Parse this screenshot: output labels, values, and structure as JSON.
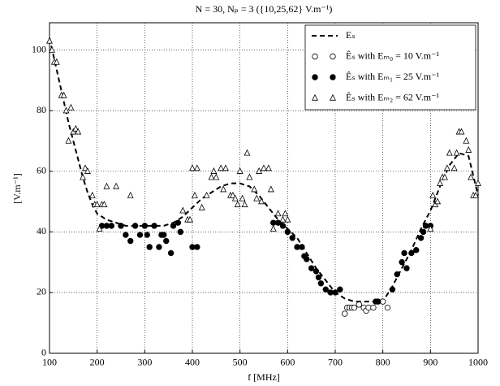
{
  "chart_data": {
    "type": "line",
    "title": "N = 30, Nₚ = 3 ({10,25,62} V.m⁻¹)",
    "x_label": "f [MHz]",
    "y_label": "[V.m⁻¹]",
    "xlim": [
      100,
      1000
    ],
    "xticks": [
      100,
      200,
      300,
      400,
      500,
      600,
      700,
      800,
      900,
      1000
    ],
    "ylim": [
      0,
      109
    ],
    "yticks": [
      0,
      20,
      40,
      60,
      80,
      100
    ],
    "grid": true,
    "legend": "upper right",
    "series": [
      {
        "name": "Eₛ",
        "color": "#000000",
        "style": "dashed",
        "x": [
          100,
          110,
          120,
          130,
          140,
          150,
          160,
          170,
          180,
          190,
          200,
          220,
          240,
          260,
          280,
          300,
          320,
          340,
          360,
          380,
          400,
          420,
          440,
          460,
          480,
          500,
          520,
          540,
          560,
          580,
          600,
          620,
          640,
          660,
          680,
          700,
          720,
          740,
          760,
          780,
          800,
          820,
          840,
          860,
          880,
          900,
          920,
          940,
          960,
          980,
          1000
        ],
        "values": [
          104,
          97,
          90,
          83,
          76,
          70,
          64,
          58,
          53,
          49,
          46,
          44,
          43,
          42,
          42,
          42,
          42,
          42,
          43,
          45,
          48,
          51,
          53,
          55,
          56,
          56,
          55,
          52,
          48,
          44,
          41,
          38,
          33,
          28,
          24,
          20,
          18,
          17,
          17,
          17,
          17,
          22,
          28,
          34,
          41,
          47,
          55,
          62,
          66,
          65,
          52
        ]
      },
      {
        "name": "Êₛ with Eₘ₀ = 10 V.m⁻¹",
        "color": "#000000",
        "marker": "open-circle",
        "x": [
          720,
          725,
          730,
          735,
          740,
          750,
          760,
          765,
          770,
          780,
          800,
          810
        ],
        "values": [
          13,
          15,
          15,
          15,
          15,
          16,
          15,
          14,
          15,
          15,
          17,
          15
        ]
      },
      {
        "name": "Êₛ with Eₘ₁ = 25 V.m⁻¹",
        "color": "#000000",
        "marker": "filled-circle",
        "x": [
          210,
          220,
          230,
          250,
          260,
          270,
          280,
          290,
          300,
          305,
          310,
          320,
          330,
          335,
          340,
          345,
          355,
          360,
          370,
          375,
          400,
          410,
          570,
          580,
          590,
          600,
          610,
          620,
          630,
          635,
          640,
          650,
          660,
          665,
          670,
          680,
          690,
          700,
          710,
          785,
          790,
          820,
          830,
          840,
          845,
          850,
          860,
          870,
          880,
          885,
          890,
          900
        ],
        "values": [
          42,
          42,
          42,
          42,
          39,
          37,
          42,
          39,
          42,
          39,
          35,
          42,
          35,
          39,
          39,
          37,
          33,
          42,
          43,
          40,
          35,
          35,
          43,
          43,
          42,
          40,
          38,
          35,
          35,
          32,
          31,
          28,
          27,
          25,
          23,
          21,
          20,
          20,
          21,
          17,
          17,
          21,
          26,
          30,
          33,
          28,
          33,
          34,
          38,
          40,
          42,
          42
        ]
      },
      {
        "name": "Êₛ with Eₘ₂ = 62 V.m⁻¹",
        "color": "#000000",
        "marker": "open-triangle",
        "x": [
          100,
          105,
          110,
          115,
          125,
          130,
          135,
          140,
          145,
          150,
          155,
          160,
          170,
          175,
          180,
          190,
          195,
          200,
          205,
          210,
          215,
          220,
          240,
          270,
          380,
          390,
          395,
          400,
          405,
          410,
          420,
          430,
          440,
          445,
          450,
          460,
          465,
          470,
          480,
          485,
          490,
          495,
          500,
          505,
          510,
          515,
          520,
          530,
          535,
          540,
          545,
          550,
          560,
          565,
          570,
          580,
          590,
          595,
          600,
          900,
          905,
          910,
          915,
          920,
          925,
          930,
          935,
          940,
          950,
          955,
          960,
          965,
          975,
          980,
          985,
          990,
          995,
          1000
        ],
        "values": [
          103,
          100,
          96,
          96,
          85,
          85,
          80,
          70,
          81,
          73,
          74,
          73,
          58,
          61,
          60,
          52,
          49,
          49,
          41,
          49,
          49,
          55,
          55,
          52,
          47,
          44,
          44,
          61,
          52,
          61,
          48,
          52,
          58,
          60,
          58,
          61,
          54,
          61,
          52,
          52,
          51,
          49,
          60,
          51,
          49,
          66,
          58,
          54,
          51,
          60,
          50,
          61,
          61,
          54,
          41,
          46,
          44,
          46,
          44,
          41,
          52,
          49,
          50,
          56,
          58,
          58,
          61,
          66,
          61,
          66,
          73,
          73,
          70,
          67,
          58,
          52,
          52,
          56
        ]
      }
    ]
  }
}
